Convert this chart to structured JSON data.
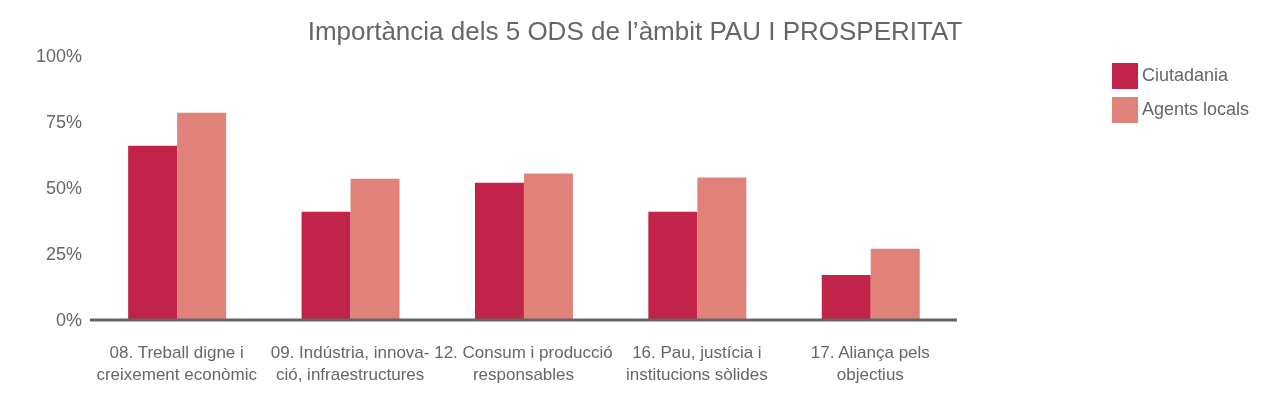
{
  "chart_data": {
    "type": "bar",
    "title": "Importància dels 5 ODS de l’àmbit PAU I PROSPERITAT",
    "categories": [
      "08. Treball digne i\ncreixement econòmic",
      "09. Indústria, innova-\nció, infraestructures",
      "12. Consum i producció\nresponsables",
      "16. Pau, justícia i\ninstitucions sòlides",
      "17. Aliança pels\nobjectius"
    ],
    "series": [
      {
        "name": "Ciutadania",
        "color": "#c22348",
        "values": [
          66,
          41,
          52,
          41,
          17
        ]
      },
      {
        "name": "Agents locals",
        "color": "#e0827a",
        "values": [
          78.5,
          53.5,
          55.5,
          54,
          27
        ]
      }
    ],
    "ylim": [
      0,
      100
    ],
    "yticks": [
      {
        "value": 0,
        "label": "0%"
      },
      {
        "value": 25,
        "label": "25%"
      },
      {
        "value": 50,
        "label": "50%"
      },
      {
        "value": 75,
        "label": "75%"
      },
      {
        "value": 100,
        "label": "100%"
      }
    ],
    "grid": false,
    "legend": "top right"
  }
}
